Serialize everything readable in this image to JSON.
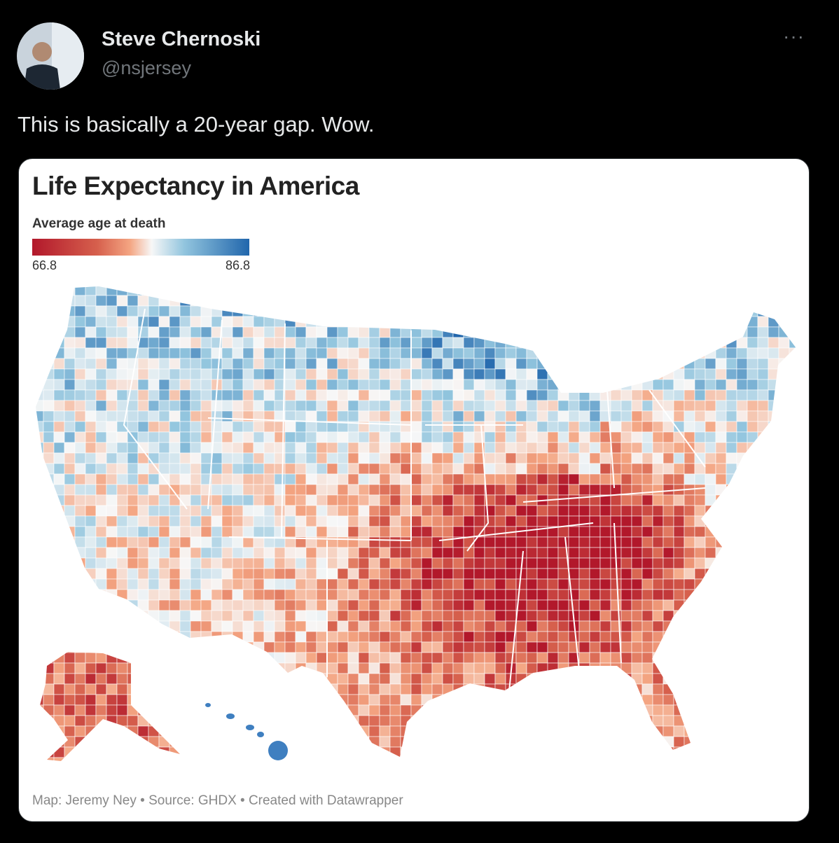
{
  "post": {
    "author": "Steve Chernoski",
    "handle": "@nsjersey",
    "text": "This is basically a 20-year gap. Wow.",
    "image": {
      "title": "Life Expectancy in America",
      "legend_title": "Average age at death",
      "legend_min": 66.8,
      "legend_max": 86.8,
      "footer": "Map: Jeremy Ney • Source: GHDX • Created with Datawrapper"
    }
  }
}
